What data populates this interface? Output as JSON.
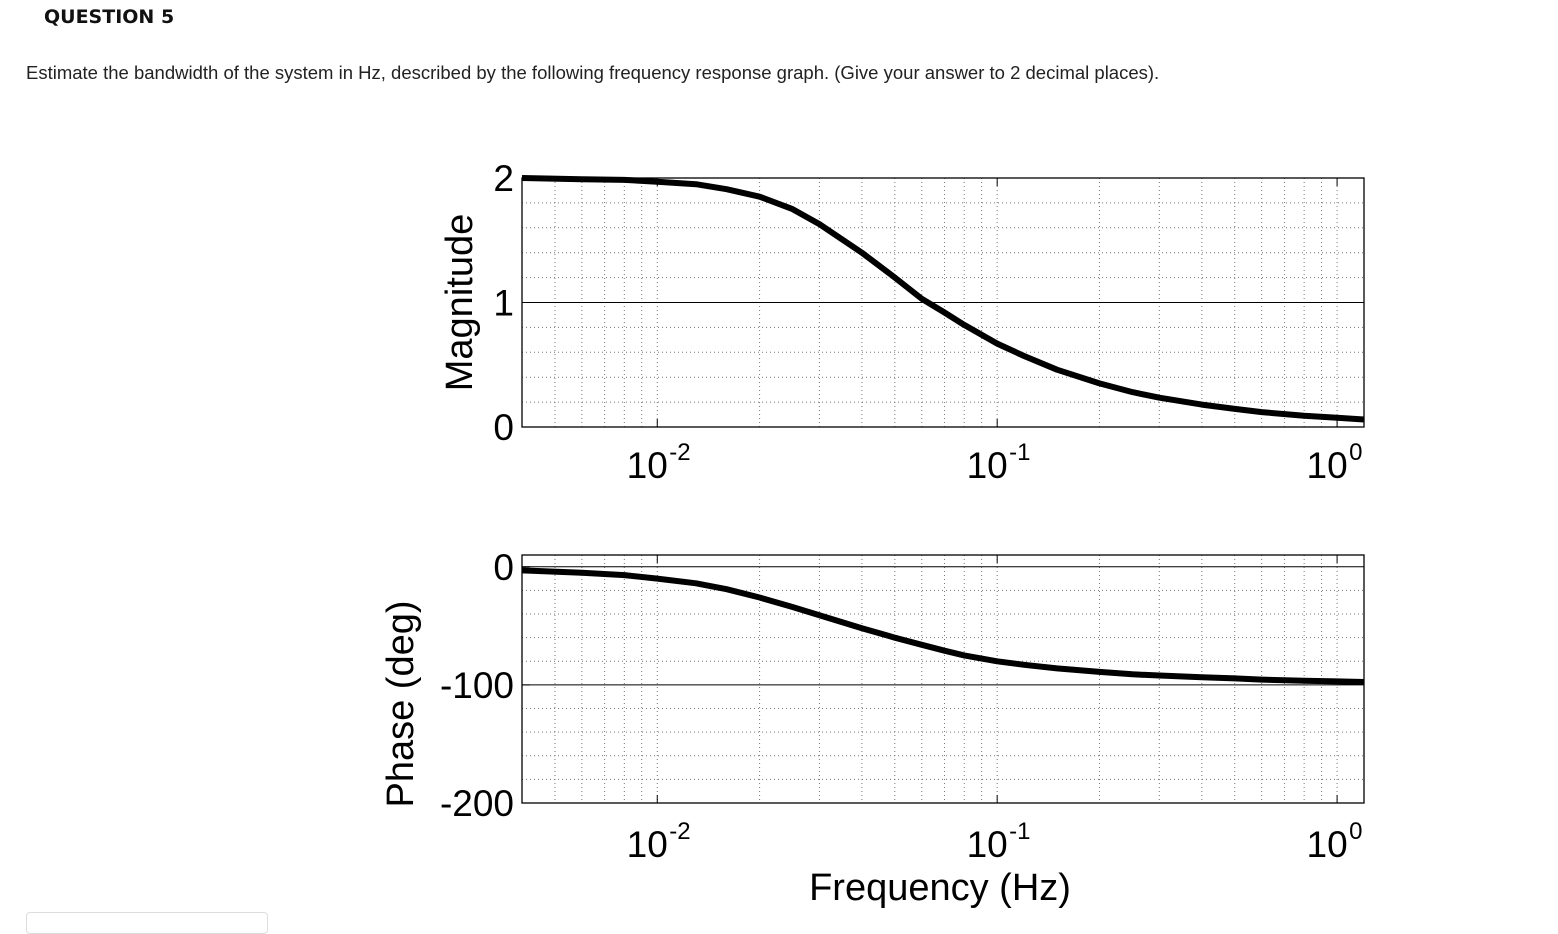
{
  "question": {
    "title": "QUESTION 5",
    "text": "Estimate the bandwidth of the system in Hz, described by the following frequency response graph. (Give your answer to 2 decimal places)."
  },
  "chart_data": [
    {
      "type": "line",
      "ylabel": "Magnitude",
      "xlabel": "",
      "xscale": "log",
      "xlim": [
        0.004,
        1.2
      ],
      "ylim": [
        0,
        2
      ],
      "yticks": [
        0,
        1,
        2
      ],
      "xticks": [
        0.01,
        0.1,
        1
      ],
      "xtick_labels": [
        {
          "base": "10",
          "exp": "-2"
        },
        {
          "base": "10",
          "exp": "-1"
        },
        {
          "base": "10",
          "exp": "0"
        }
      ],
      "grid": true,
      "series": [
        {
          "color": "#000000",
          "x": [
            0.004,
            0.006,
            0.008,
            0.01,
            0.013,
            0.016,
            0.02,
            0.025,
            0.03,
            0.04,
            0.05,
            0.06,
            0.07,
            0.08,
            0.1,
            0.12,
            0.15,
            0.2,
            0.25,
            0.3,
            0.4,
            0.5,
            0.6,
            0.8,
            1.0,
            1.2
          ],
          "y": [
            2.0,
            1.99,
            1.985,
            1.97,
            1.95,
            1.91,
            1.85,
            1.75,
            1.63,
            1.4,
            1.2,
            1.03,
            0.92,
            0.82,
            0.67,
            0.57,
            0.46,
            0.35,
            0.28,
            0.235,
            0.18,
            0.145,
            0.12,
            0.09,
            0.075,
            0.06
          ]
        }
      ]
    },
    {
      "type": "line",
      "ylabel": "Phase (deg)",
      "xlabel": "Frequency (Hz)",
      "xscale": "log",
      "xlim": [
        0.004,
        1.2
      ],
      "ylim": [
        -200,
        10
      ],
      "yticks": [
        -200,
        -100,
        0
      ],
      "xticks": [
        0.01,
        0.1,
        1
      ],
      "xtick_labels": [
        {
          "base": "10",
          "exp": "-2"
        },
        {
          "base": "10",
          "exp": "-1"
        },
        {
          "base": "10",
          "exp": "0"
        }
      ],
      "grid": true,
      "series": [
        {
          "color": "#000000",
          "x": [
            0.004,
            0.006,
            0.008,
            0.01,
            0.013,
            0.016,
            0.02,
            0.025,
            0.03,
            0.04,
            0.05,
            0.06,
            0.07,
            0.08,
            0.1,
            0.12,
            0.15,
            0.2,
            0.25,
            0.3,
            0.4,
            0.5,
            0.6,
            0.8,
            1.0,
            1.2
          ],
          "y": [
            -3,
            -5,
            -7,
            -10,
            -14,
            -19,
            -26,
            -34,
            -41,
            -52,
            -60,
            -66,
            -71,
            -75,
            -80,
            -83,
            -86,
            -89,
            -91,
            -92,
            -93.5,
            -94.5,
            -95.5,
            -96.5,
            -97,
            -97.5
          ]
        }
      ]
    }
  ]
}
